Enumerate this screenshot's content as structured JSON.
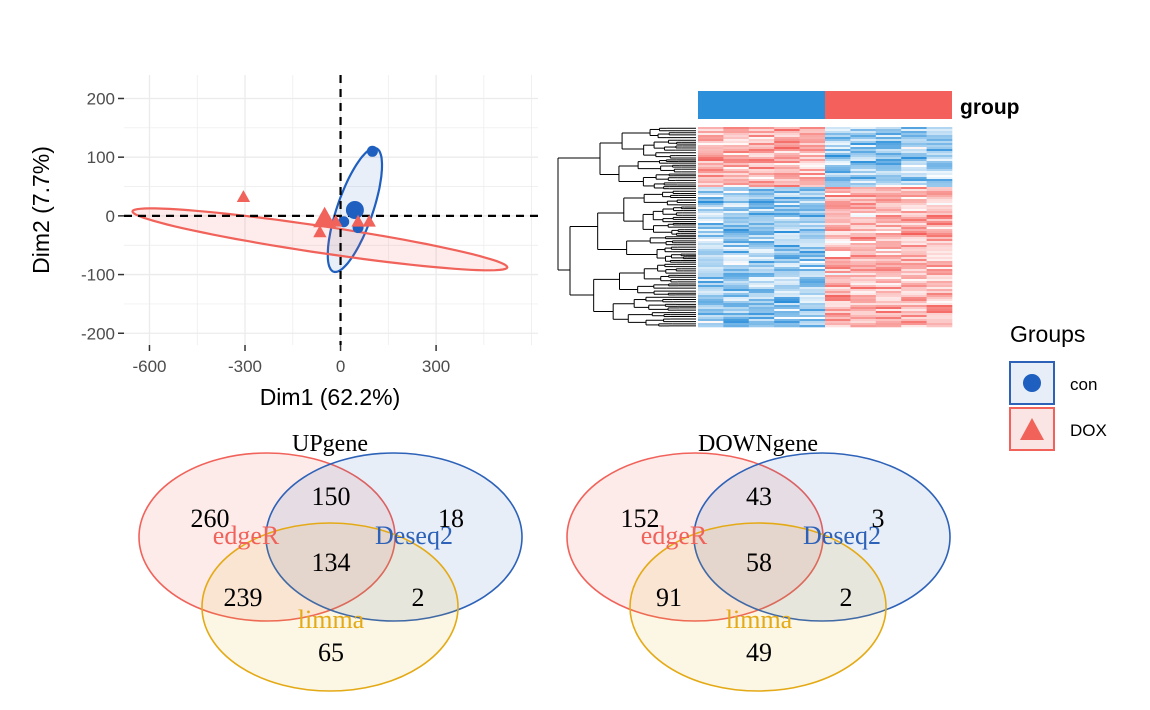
{
  "chart_data": [
    {
      "type": "scatter",
      "xlabel": "Dim1 (62.2%)",
      "ylabel": "Dim2 (7.7%)",
      "xlim": [
        -680,
        620
      ],
      "ylim": [
        -220,
        240
      ],
      "xticks": [
        -600,
        -300,
        0,
        300
      ],
      "yticks": [
        -200,
        -100,
        0,
        100,
        200
      ],
      "xtick_labels": [
        "-600",
        "-300",
        "0",
        "300"
      ],
      "ytick_labels": [
        "-200",
        "-100",
        "0",
        "100",
        "200"
      ],
      "grid": true,
      "reference_lines": {
        "x": 0,
        "y": 0,
        "style": "dashed"
      },
      "series": [
        {
          "name": "con",
          "marker": "circle",
          "color": "#1F5FBF",
          "points": [
            [
              100,
              110
            ],
            [
              55,
              -20
            ],
            [
              10,
              -10
            ]
          ],
          "centroid": [
            45,
            10
          ],
          "ellipse": {
            "center": [
              45,
              10
            ],
            "semi_major": 205,
            "semi_minor": 56,
            "angle_deg": 71
          }
        },
        {
          "name": "DOX",
          "marker": "triangle",
          "color": "#F0625A",
          "points": [
            [
              -305,
              32
            ],
            [
              -65,
              -28
            ],
            [
              -40,
              -8
            ],
            [
              -15,
              -10
            ],
            [
              55,
              -10
            ],
            [
              90,
              -10
            ]
          ],
          "centroid": [
            -50,
            -5
          ],
          "ellipse": {
            "center": [
              -65,
              -40
            ],
            "semi_major": 595,
            "semi_minor": 42,
            "angle_deg": -8.5
          }
        }
      ],
      "legend": {
        "title": "Groups",
        "position": "right",
        "items": [
          "con",
          "DOX"
        ]
      }
    },
    {
      "type": "heatmap",
      "annotation_label": "group",
      "groups": [
        {
          "name": "con",
          "color": "#2B8FDA",
          "columns": 5
        },
        {
          "name": "DOX",
          "color": "#F4605B",
          "columns": 5
        }
      ],
      "row_dendrogram": true,
      "colors": {
        "low": "#2B8FDA",
        "mid": "#FFFFFF",
        "high": "#F4605B"
      }
    },
    {
      "type": "venn",
      "title": "UPgene",
      "sets": [
        "edgeR",
        "Deseq2",
        "limma"
      ],
      "regions": {
        "edgeR_only": 260,
        "Deseq2_only": 18,
        "limma_only": 65,
        "edgeR_Deseq2": 150,
        "edgeR_limma": 239,
        "Deseq2_limma": 2,
        "all": 134
      }
    },
    {
      "type": "venn",
      "title": "DOWNgene",
      "sets": [
        "edgeR",
        "Deseq2",
        "limma"
      ],
      "regions": {
        "edgeR_only": 152,
        "Deseq2_only": 3,
        "limma_only": 49,
        "edgeR_Deseq2": 43,
        "edgeR_limma": 91,
        "Deseq2_limma": 2,
        "all": 58
      }
    }
  ],
  "colors": {
    "con": "#1F5FBF",
    "dox": "#F0625A",
    "edgeR": "#F0625A",
    "deseq2": "#2D62B8",
    "limma": "#E4AA16",
    "heat_blue": "#2B8FDA",
    "heat_red": "#F4605B"
  }
}
